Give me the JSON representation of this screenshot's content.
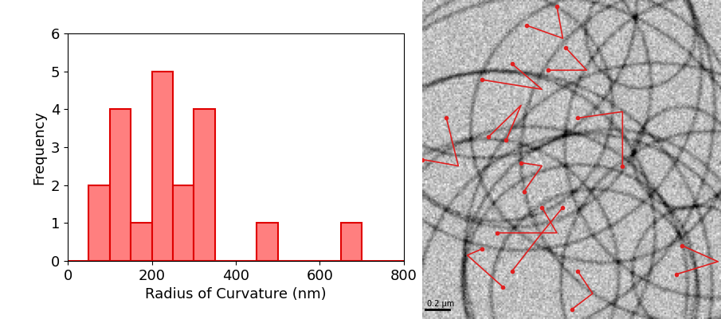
{
  "chart_data": {
    "type": "histogram",
    "bins": [
      50,
      100,
      150,
      200,
      250,
      300,
      350,
      400,
      450,
      500,
      550,
      600,
      650,
      700
    ],
    "values": [
      2,
      4,
      1,
      5,
      2,
      4,
      0,
      0,
      1,
      0,
      0,
      0,
      1
    ],
    "xlabel": "Radius of Curvature (nm)",
    "ylabel": "Frequency",
    "xlim": [
      0,
      800
    ],
    "xticks": [
      0,
      200,
      400,
      600,
      800
    ],
    "ylim": [
      0,
      6
    ],
    "yticks": [
      0,
      1,
      2,
      3,
      4,
      5,
      6
    ],
    "color": "#ff7f7f"
  },
  "image": {
    "scale_bar_label": "0.2 μm"
  }
}
